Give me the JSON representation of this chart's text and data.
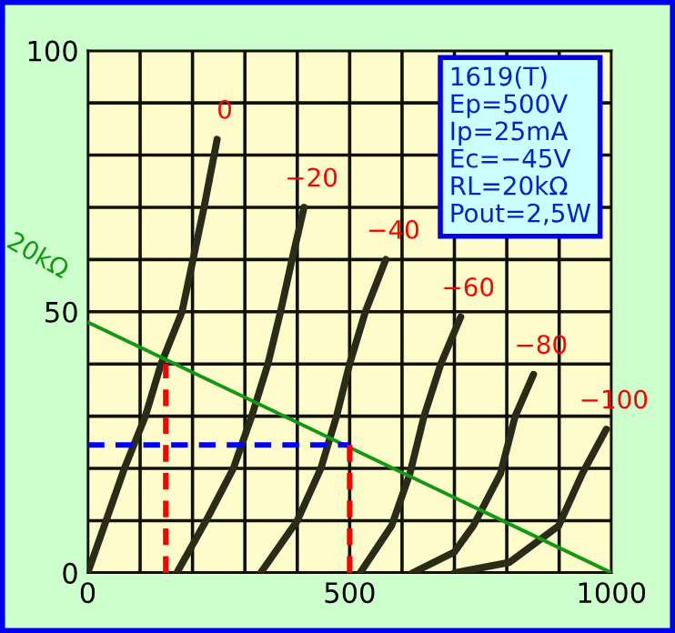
{
  "chart_data": {
    "type": "line",
    "annotations": [
      "1619(T)",
      "Ep=500V",
      "Ip=25mA",
      "Ec=−45V",
      "RL=20kΩ",
      "Pout=2,5W"
    ],
    "xlim": [
      0,
      1000
    ],
    "ylim": [
      0,
      100
    ],
    "xticks": [
      0,
      {
        "value": 100,
        "label": null
      },
      {
        "value": 200,
        "label": null
      },
      {
        "value": 300,
        "label": null
      },
      {
        "value": 400,
        "label": null
      },
      500,
      {
        "value": 600,
        "label": null
      },
      {
        "value": 700,
        "label": null
      },
      {
        "value": 800,
        "label": null
      },
      {
        "value": 900,
        "label": null
      },
      1000
    ],
    "yticks": [
      0,
      {
        "value": 10,
        "label": null
      },
      {
        "value": 20,
        "label": null
      },
      {
        "value": 30,
        "label": null
      },
      {
        "value": 40,
        "label": null
      },
      50,
      {
        "value": 60,
        "label": null
      },
      {
        "value": 70,
        "label": null
      },
      {
        "value": 80,
        "label": null
      },
      {
        "value": 90,
        "label": null
      },
      100
    ],
    "grid": true,
    "marker": "none",
    "series": [
      {
        "name": "0",
        "color": "#2b2b1a",
        "x": [
          0,
          35,
          70,
          110,
          140,
          180,
          201,
          222,
          247
        ],
        "values": [
          0,
          10,
          20,
          30,
          40,
          50,
          60,
          70,
          83
        ]
      },
      {
        "name": "−20",
        "color": "#2b2b1a",
        "x": [
          170,
          226,
          278,
          313,
          344,
          368,
          390,
          413
        ],
        "values": [
          0,
          10,
          20,
          30,
          40,
          50,
          60,
          70
        ]
      },
      {
        "name": "−40",
        "color": "#2b2b1a",
        "x": [
          330,
          400,
          445,
          475,
          500,
          530,
          569
        ],
        "values": [
          0,
          10,
          20,
          30,
          40,
          50,
          60
        ]
      },
      {
        "name": "−60",
        "color": "#2b2b1a",
        "x": [
          520,
          580,
          615,
          642,
          674,
          712
        ],
        "values": [
          0,
          9,
          19,
          30,
          40,
          49
        ]
      },
      {
        "name": "−80",
        "color": "#2b2b1a",
        "x": [
          620,
          700,
          736,
          788,
          816,
          851
        ],
        "values": [
          0,
          4,
          9,
          19,
          30,
          38
        ]
      },
      {
        "name": "−100",
        "color": "#2b2b1a",
        "x": [
          700,
          805,
          899,
          944,
          990
        ],
        "values": [
          0,
          2,
          9,
          19,
          27.5
        ]
      },
      {
        "name": "20kΩ",
        "color": "#119911",
        "x": [
          0,
          1000
        ],
        "values": [
          48,
          0
        ]
      },
      {
        "color": "#0000ff",
        "line_style": "dashed",
        "x": [
          0,
          500
        ],
        "values": [
          24.5,
          24.5
        ]
      },
      {
        "color": "#ff0000",
        "line_style": "dashed",
        "x": [
          149,
          149
        ],
        "values": [
          0,
          40
        ]
      },
      {
        "color": "#ff0000",
        "line_style": "dashed",
        "x": [
          500,
          500
        ],
        "values": [
          0,
          24.5
        ]
      }
    ]
  }
}
